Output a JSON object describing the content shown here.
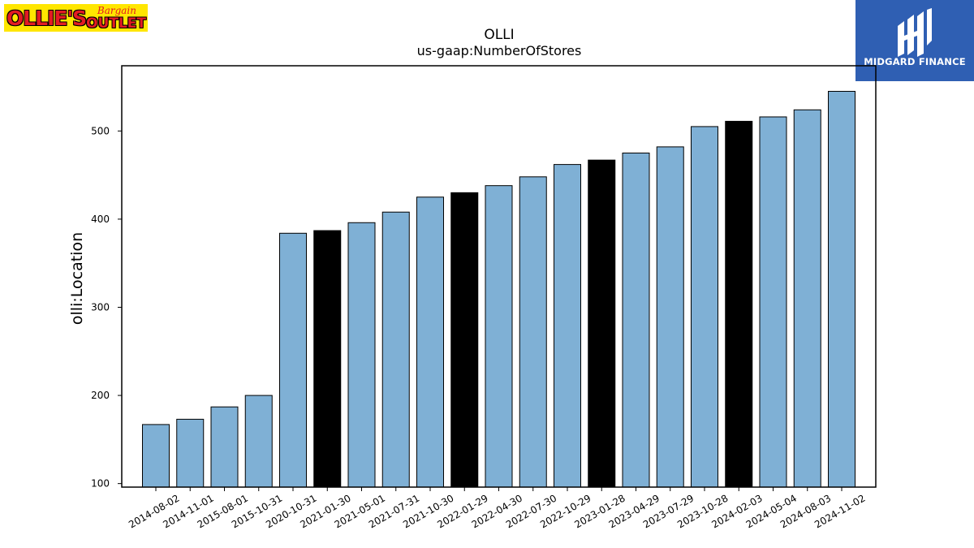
{
  "logos": {
    "left_text": "Ollie's Bargain Outlet",
    "right_text": "MIDGARD FINANCE"
  },
  "chart_data": {
    "type": "bar",
    "title": "OLLI",
    "subtitle": "us-gaap:NumberOfStores",
    "ylabel": "olli:Location",
    "xlabel": "",
    "ylim": [
      96,
      574
    ],
    "yticks": [
      100,
      200,
      300,
      400,
      500
    ],
    "grid": false,
    "categories": [
      "2014-08-02",
      "2014-11-01",
      "2015-08-01",
      "2015-10-31",
      "2020-10-31",
      "2021-01-30",
      "2021-05-01",
      "2021-07-31",
      "2021-10-30",
      "2022-01-29",
      "2022-04-30",
      "2022-07-30",
      "2022-10-29",
      "2023-01-28",
      "2023-04-29",
      "2023-07-29",
      "2023-10-28",
      "2024-02-03",
      "2024-05-04",
      "2024-08-03",
      "2024-11-02"
    ],
    "values": [
      167,
      173,
      187,
      200,
      384,
      387,
      396,
      408,
      425,
      430,
      438,
      448,
      462,
      467,
      475,
      482,
      505,
      511,
      516,
      524,
      545
    ],
    "highlighted": [
      "2021-01-30",
      "2022-01-29",
      "2023-01-28",
      "2024-02-03"
    ],
    "colors": {
      "bar": "#7fb0d5",
      "highlight": "#000000",
      "edge": "#000000"
    }
  }
}
